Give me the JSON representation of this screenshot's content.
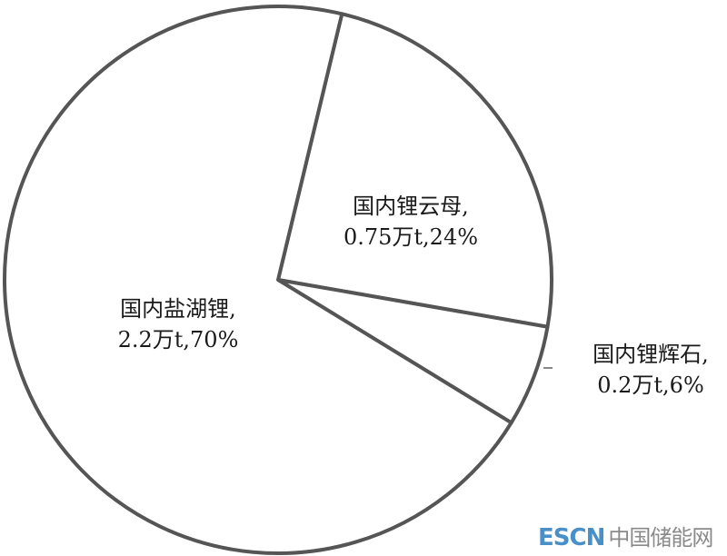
{
  "chart_data": {
    "type": "pie",
    "start_angle_deg": 13.5,
    "direction": "clockwise",
    "slices": [
      {
        "name": "国内锂云母",
        "value": 0.75,
        "unit": "万t",
        "percent": 24,
        "label_line1": "国内锂云母,",
        "label_line2": "0.75万t,24%"
      },
      {
        "name": "国内锂辉石",
        "value": 0.2,
        "unit": "万t",
        "percent": 6,
        "label_line1": "国内锂辉石,",
        "label_line2": "0.2万t,6%"
      },
      {
        "name": "国内盐湖锂",
        "value": 2.2,
        "unit": "万t",
        "percent": 70,
        "label_line1": "国内盐湖锂,",
        "label_line2": "2.2万t,70%"
      }
    ],
    "colors": {
      "fill": "#ffffff",
      "stroke": "#555555"
    }
  },
  "watermark": {
    "en": "ESCN",
    "cn": "中国储能网",
    "en_color": "#4a90c8",
    "cn_color": "#8a8a8a"
  }
}
